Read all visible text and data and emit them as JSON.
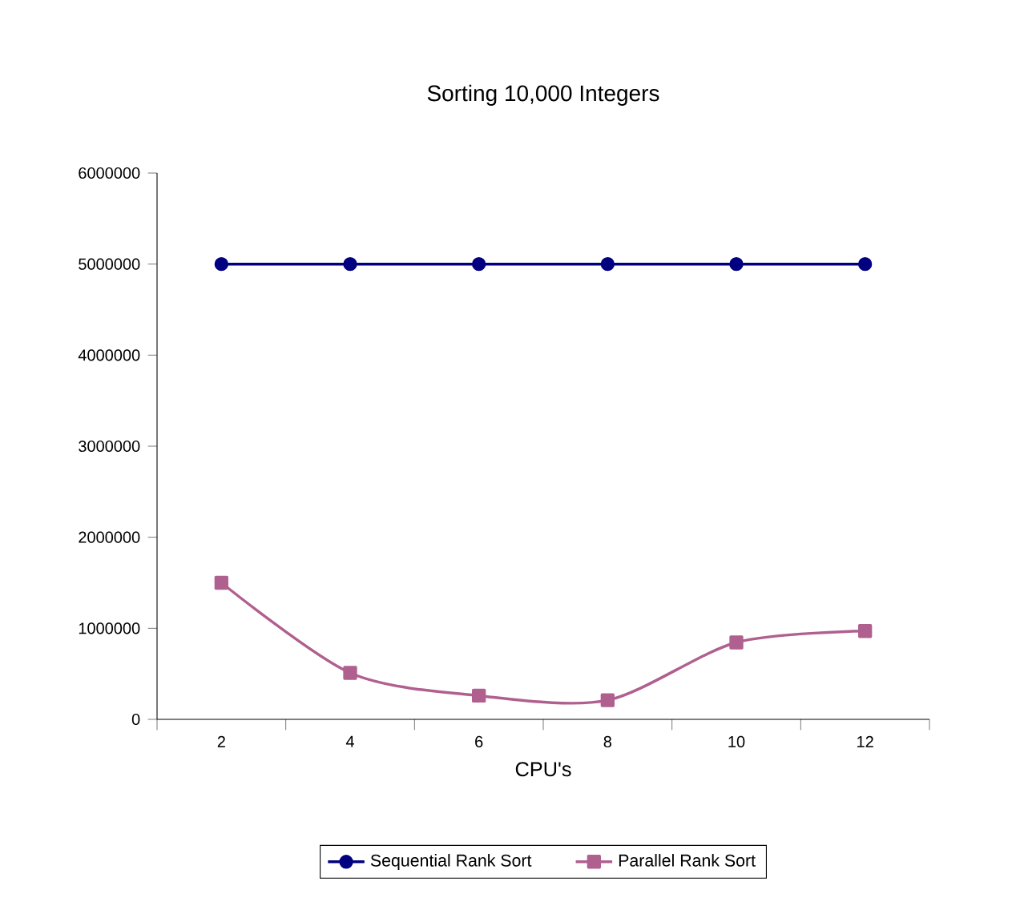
{
  "chart_data": {
    "type": "line",
    "title": "Sorting 10,000 Integers",
    "xlabel": "CPU's",
    "categories": [
      "2",
      "4",
      "6",
      "8",
      "10",
      "12"
    ],
    "series": [
      {
        "name": "Sequential Rank Sort",
        "color": "#000080",
        "marker": "circle",
        "values": [
          5000000,
          5000000,
          5000000,
          5000000,
          5000000,
          5000000
        ]
      },
      {
        "name": "Parallel Rank Sort",
        "color": "#b0608f",
        "marker": "square",
        "values": [
          1500000,
          510000,
          260000,
          210000,
          845000,
          970000
        ]
      }
    ],
    "ylim": [
      0,
      6000000
    ],
    "yticks": [
      0,
      1000000,
      2000000,
      3000000,
      4000000,
      5000000,
      6000000
    ],
    "grid": false,
    "legend": "bottom",
    "line_style": "solid"
  }
}
